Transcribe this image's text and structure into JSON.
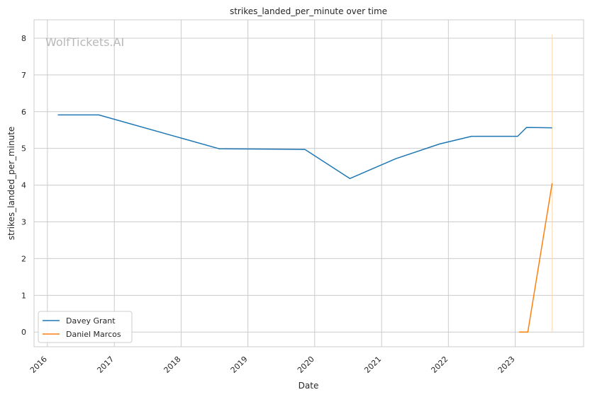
{
  "chart_data": {
    "type": "line",
    "title": "strikes_landed_per_minute over time",
    "xlabel": "Date",
    "ylabel": "strikes_landed_per_minute",
    "watermark": "WolfTickets.AI",
    "x_ticks": [
      "2016",
      "2017",
      "2018",
      "2019",
      "2020",
      "2021",
      "2022",
      "2023"
    ],
    "y_ticks": [
      "0",
      "1",
      "2",
      "3",
      "4",
      "5",
      "6",
      "7",
      "8"
    ],
    "ylim": [
      -0.4,
      8.5
    ],
    "xlim": [
      "2015-10-20",
      "2024-01-10"
    ],
    "grid": true,
    "legend_position": "bottom-left",
    "vertical_marker": {
      "x": "2023-07-22",
      "color": "#fdd9b5"
    },
    "series": [
      {
        "name": "Davey Grant",
        "color": "#1f77b4",
        "x": [
          "2016-02-27",
          "2016-10-08",
          "2018-07-28",
          "2019-11-09",
          "2020-07-11",
          "2021-03-20",
          "2021-11-13",
          "2022-05-07",
          "2023-01-14",
          "2023-03-04",
          "2023-07-22"
        ],
        "y": [
          5.91,
          5.91,
          4.99,
          4.97,
          4.18,
          4.72,
          5.12,
          5.33,
          5.33,
          5.57,
          5.56
        ]
      },
      {
        "name": "Daniel Marcos",
        "color": "#ff7f0e",
        "x": [
          "2023-01-22",
          "2023-03-11",
          "2023-07-22"
        ],
        "y": [
          0.0,
          0.0,
          4.05
        ]
      }
    ]
  }
}
